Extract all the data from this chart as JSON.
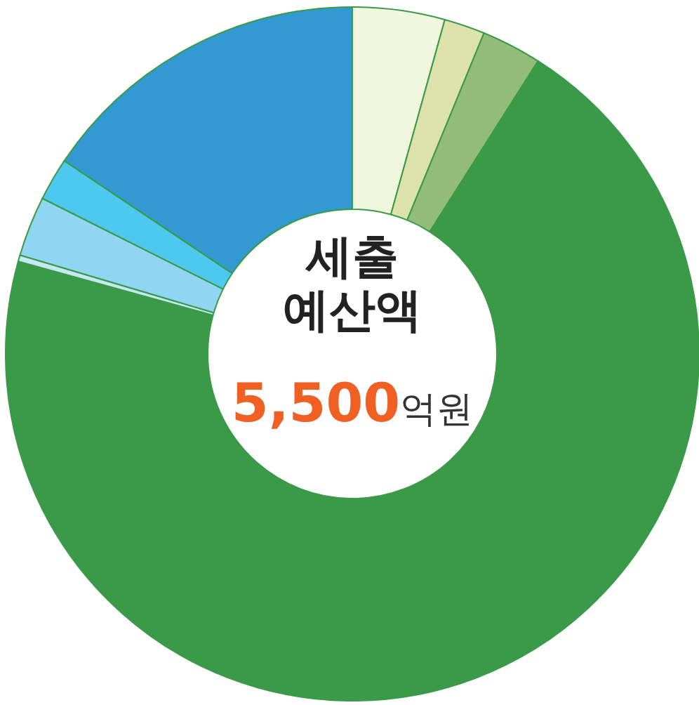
{
  "chart_data": {
    "type": "donut",
    "title": "세출 예산액",
    "annotations": [
      "5,500억원"
    ],
    "categories": [
      null,
      null,
      null,
      null,
      null,
      null,
      null,
      null
    ],
    "values": [
      4.3,
      1.9,
      2.8,
      70.3,
      0.3,
      2.8,
      2.0,
      15.6
    ],
    "colors": [
      "#f1f6df",
      "#dde2ad",
      "#93bb7a",
      "#3a9a48",
      "#c6e8f5",
      "#8fd6f3",
      "#4dc9f0",
      "#3399d3"
    ]
  }
}
